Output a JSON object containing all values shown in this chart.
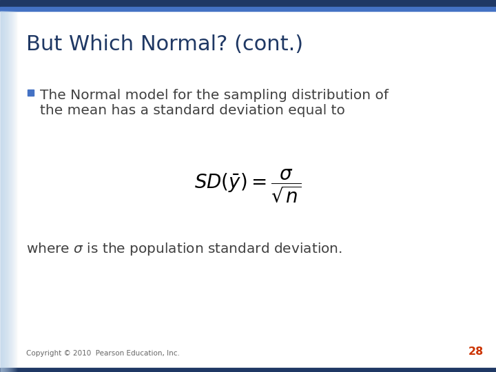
{
  "title": "But Which Normal? (cont.)",
  "title_color": "#1F3864",
  "title_fontsize": 22,
  "bg_color": "#FFFFFF",
  "left_bar_color": "#B8D0E8",
  "top_bar_color1": "#1F3864",
  "top_bar_color2": "#4472C4",
  "bullet_color": "#4472C4",
  "bullet_text_line1": "The Normal model for the sampling distribution of",
  "bullet_text_line2": "the mean has a standard deviation equal to",
  "copyright_text": "Copyright © 2010  Pearson Education, Inc.",
  "page_number": "28",
  "text_color": "#404040",
  "formula_color": "#000000",
  "copyright_color": "#666666",
  "page_num_color": "#CC3300",
  "body_fontsize": 14.5,
  "formula_fontsize": 18,
  "where_fontsize": 14.5,
  "copyright_fontsize": 7.5
}
